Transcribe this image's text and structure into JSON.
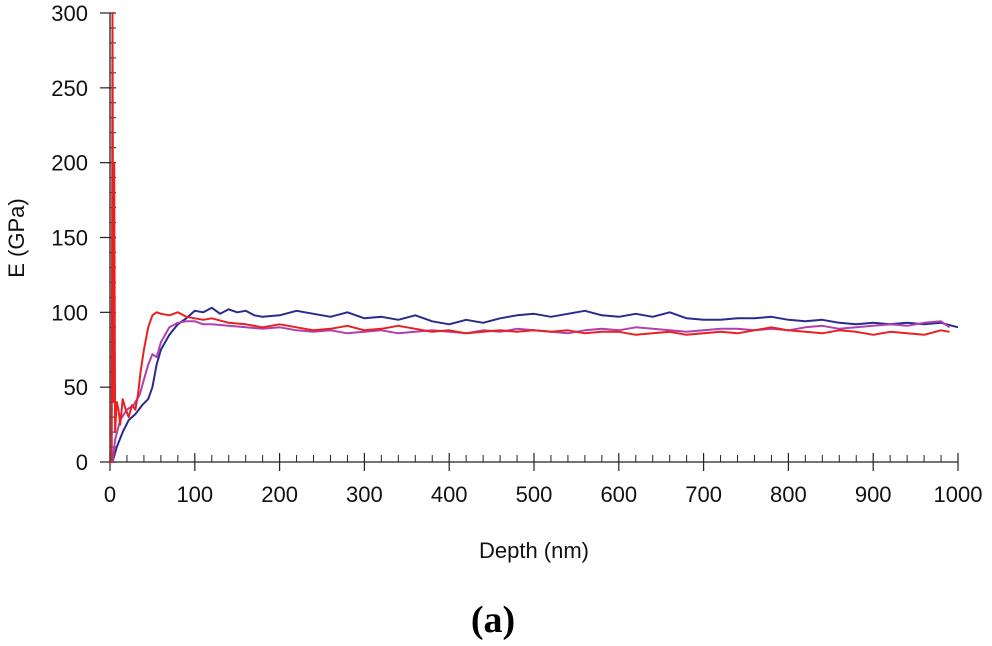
{
  "chart_data": {
    "type": "line",
    "title": "",
    "panel_label": "(a)",
    "xlabel": "Depth (nm)",
    "ylabel": "E (GPa)",
    "xlim": [
      0,
      1000
    ],
    "ylim": [
      0,
      300
    ],
    "x_ticks": [
      0,
      100,
      200,
      300,
      400,
      500,
      600,
      700,
      800,
      900,
      1000
    ],
    "y_ticks": [
      0,
      50,
      100,
      150,
      200,
      250,
      300
    ],
    "x_tick_labels": [
      "0",
      "100",
      "200",
      "300",
      "400",
      "500",
      "600",
      "700",
      "800",
      "900",
      "1000"
    ],
    "y_tick_labels": [
      "0",
      "50",
      "100",
      "150",
      "200",
      "250",
      "300"
    ],
    "x_minor_step": 20,
    "y_minor_step": 10,
    "grid": false,
    "legend": "none",
    "series": [
      {
        "name": "navy",
        "color": "#2a2a8c",
        "x": [
          3,
          8,
          15,
          22,
          30,
          38,
          45,
          50,
          55,
          60,
          65,
          70,
          80,
          90,
          100,
          110,
          120,
          130,
          140,
          150,
          160,
          170,
          180,
          200,
          220,
          240,
          260,
          280,
          300,
          320,
          340,
          360,
          380,
          400,
          420,
          440,
          460,
          480,
          500,
          520,
          540,
          560,
          580,
          600,
          620,
          640,
          660,
          680,
          700,
          720,
          740,
          760,
          780,
          800,
          820,
          840,
          860,
          880,
          900,
          920,
          940,
          960,
          980,
          1000
        ],
        "y": [
          0,
          10,
          20,
          28,
          32,
          38,
          42,
          50,
          65,
          75,
          80,
          85,
          92,
          96,
          101,
          100,
          103,
          99,
          102,
          100,
          101,
          98,
          97,
          98,
          101,
          99,
          97,
          100,
          96,
          97,
          95,
          98,
          94,
          92,
          95,
          93,
          96,
          98,
          99,
          97,
          99,
          101,
          98,
          97,
          99,
          97,
          100,
          96,
          95,
          95,
          96,
          96,
          97,
          95,
          94,
          95,
          93,
          92,
          93,
          92,
          93,
          92,
          93,
          90
        ]
      },
      {
        "name": "magenta",
        "color": "#b040b0",
        "x": [
          3,
          6,
          12,
          20,
          28,
          35,
          40,
          45,
          50,
          55,
          60,
          65,
          70,
          80,
          90,
          100,
          110,
          120,
          140,
          160,
          180,
          200,
          220,
          240,
          260,
          280,
          300,
          320,
          340,
          360,
          380,
          400,
          420,
          440,
          460,
          480,
          500,
          520,
          540,
          560,
          580,
          600,
          620,
          640,
          660,
          680,
          700,
          720,
          740,
          760,
          780,
          800,
          820,
          840,
          860,
          880,
          900,
          920,
          940,
          960,
          980,
          990
        ],
        "y": [
          0,
          15,
          28,
          35,
          38,
          45,
          55,
          65,
          72,
          70,
          80,
          85,
          90,
          93,
          94,
          94,
          92,
          92,
          91,
          90,
          89,
          90,
          88,
          87,
          88,
          86,
          87,
          88,
          86,
          87,
          88,
          87,
          86,
          88,
          87,
          89,
          88,
          87,
          86,
          88,
          89,
          88,
          90,
          89,
          88,
          87,
          88,
          89,
          89,
          88,
          89,
          88,
          90,
          91,
          89,
          90,
          91,
          92,
          91,
          93,
          94,
          90
        ]
      },
      {
        "name": "red",
        "color": "#e82020",
        "x": [
          0,
          2,
          3,
          4,
          5,
          6,
          7,
          8,
          10,
          12,
          15,
          18,
          22,
          26,
          30,
          33,
          36,
          40,
          45,
          50,
          55,
          60,
          70,
          80,
          90,
          100,
          110,
          120,
          140,
          160,
          180,
          200,
          220,
          240,
          260,
          280,
          300,
          320,
          340,
          360,
          380,
          400,
          420,
          440,
          460,
          480,
          500,
          520,
          540,
          560,
          580,
          600,
          620,
          640,
          660,
          680,
          700,
          720,
          740,
          760,
          780,
          800,
          820,
          840,
          860,
          880,
          900,
          920,
          940,
          960,
          980,
          990
        ],
        "y": [
          0,
          0,
          300,
          40,
          200,
          20,
          30,
          40,
          35,
          25,
          42,
          36,
          30,
          38,
          35,
          45,
          60,
          75,
          90,
          98,
          100,
          99,
          98,
          100,
          97,
          96,
          95,
          96,
          93,
          92,
          90,
          92,
          90,
          88,
          89,
          91,
          88,
          89,
          91,
          89,
          87,
          88,
          86,
          87,
          88,
          87,
          88,
          87,
          88,
          86,
          87,
          87,
          85,
          86,
          87,
          85,
          86,
          87,
          86,
          88,
          90,
          88,
          87,
          86,
          88,
          87,
          85,
          87,
          86,
          85,
          88,
          87
        ]
      }
    ]
  }
}
